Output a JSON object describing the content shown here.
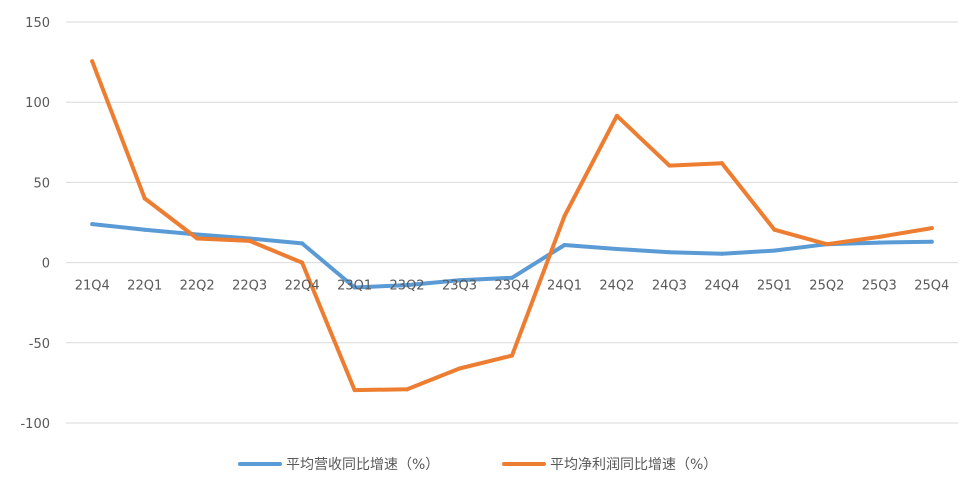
{
  "chart_data": {
    "type": "line",
    "title": "",
    "xlabel": "",
    "ylabel": "",
    "ylim": [
      -100,
      150
    ],
    "yticks": [
      150,
      100,
      50,
      0,
      -50,
      -100
    ],
    "grid": true,
    "legend_position": "bottom",
    "categories": [
      "21Q4",
      "22Q1",
      "22Q2",
      "22Q3",
      "22Q4",
      "23Q1",
      "23Q2",
      "23Q3",
      "23Q4",
      "24Q1",
      "24Q2",
      "24Q3",
      "24Q4",
      "25Q1",
      "25Q2",
      "25Q3",
      "25Q4"
    ],
    "series": [
      {
        "name": "平均营收同比增速（%）",
        "color": "#5b9bd5",
        "values": [
          24,
          20.5,
          17.5,
          15,
          12,
          -15.5,
          -14,
          -11,
          -9.5,
          11,
          8.5,
          6.5,
          5.5,
          7.5,
          11.5,
          12.5,
          13
        ]
      },
      {
        "name": "平均净利润同比增速（%）",
        "color": "#ed7d31",
        "values": [
          125.5,
          40,
          15,
          13.5,
          0,
          -79.5,
          -79,
          -66,
          -58,
          29,
          91.5,
          60.5,
          62,
          20.5,
          11.5,
          16,
          21.5
        ]
      }
    ]
  }
}
